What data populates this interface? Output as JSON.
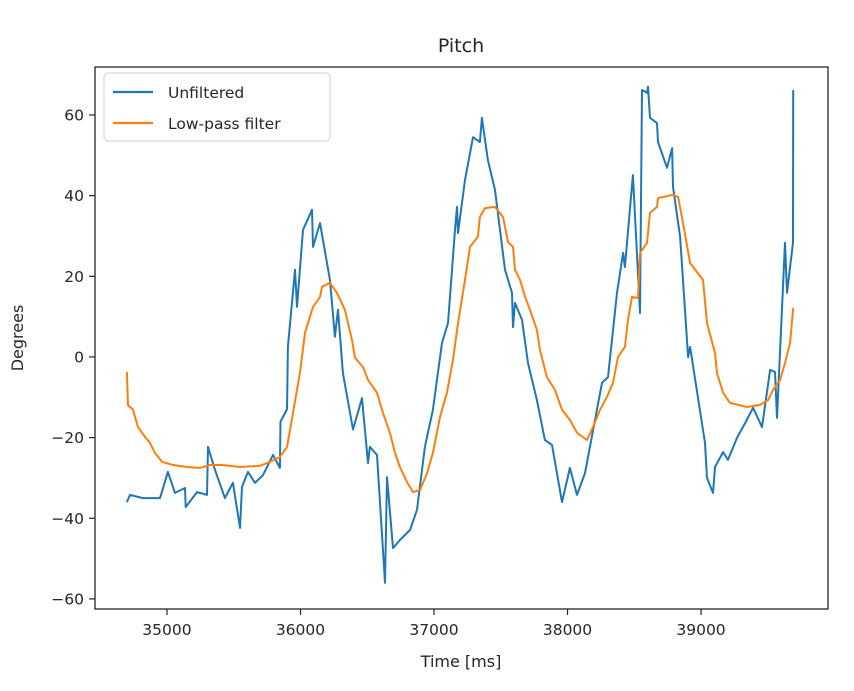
{
  "chart_data": {
    "type": "line",
    "title": "Pitch",
    "xlabel": "Time [ms]",
    "ylabel": "Degrees",
    "xlim": [
      34461,
      39951
    ],
    "ylim": [
      -62.5,
      71.9
    ],
    "xticks": [
      35000,
      36000,
      37000,
      38000,
      39000
    ],
    "yticks": [
      -60,
      -40,
      -20,
      0,
      20,
      40,
      60
    ],
    "grid": false,
    "legend_position": "top-left",
    "series": [
      {
        "name": "Unfiltered",
        "color": "#1f77b4",
        "x": [
          34700,
          34723,
          34820,
          34948,
          35007,
          35060,
          35135,
          35140,
          35225,
          35300,
          35307,
          35360,
          35434,
          35494,
          35547,
          35562,
          35607,
          35659,
          35719,
          35794,
          35846,
          35850,
          35899,
          35906,
          35959,
          35974,
          36019,
          36086,
          36094,
          36146,
          36221,
          36258,
          36281,
          36318,
          36393,
          36461,
          36506,
          36520,
          36573,
          36633,
          36648,
          36693,
          36745,
          36820,
          36873,
          36932,
          36992,
          37060,
          37105,
          37157,
          37172,
          37180,
          37232,
          37292,
          37344,
          37359,
          37404,
          37457,
          37532,
          37584,
          37592,
          37607,
          37659,
          37704,
          37771,
          37831,
          37884,
          37959,
          38018,
          38071,
          38131,
          38258,
          38303,
          38371,
          38416,
          38430,
          38490,
          38543,
          38558,
          38595,
          38603,
          38618,
          38670,
          38678,
          38745,
          38783,
          38790,
          38843,
          38903,
          38918,
          39030,
          39045,
          39090,
          39105,
          39165,
          39202,
          39270,
          39330,
          39390,
          39457,
          39517,
          39554,
          39569,
          39629,
          39644,
          39689,
          39690
        ],
        "y": [
          -36,
          -34.2,
          -35,
          -35,
          -28.5,
          -33.7,
          -32.5,
          -37.2,
          -33.5,
          -34.2,
          -22.3,
          -28,
          -35,
          -31.2,
          -42.4,
          -32.2,
          -28.5,
          -31.2,
          -29.3,
          -24.3,
          -27.5,
          -16,
          -13,
          2.5,
          21.6,
          12.4,
          31.5,
          36.5,
          27.3,
          33.2,
          19,
          5,
          11.7,
          -4,
          -18,
          -10.2,
          -26.3,
          -22.3,
          -24.3,
          -56,
          -29.8,
          -47.4,
          -45.4,
          -42.9,
          -37.9,
          -22.3,
          -13.1,
          3.5,
          8.4,
          31.5,
          37.2,
          30.7,
          43.9,
          54.5,
          53.3,
          59.3,
          48.8,
          41.4,
          21.6,
          15.9,
          7.4,
          13.4,
          9.2,
          -1.5,
          -10.7,
          -20.6,
          -21.8,
          -36,
          -27.5,
          -34.2,
          -28.8,
          -6.4,
          -5,
          15.9,
          25.8,
          22.3,
          45.1,
          10.9,
          66.2,
          65.5,
          67,
          59.3,
          58,
          53.3,
          46.9,
          51.8,
          42.2,
          29.8,
          0,
          2.5,
          -21.3,
          -30,
          -33.7,
          -27.3,
          -23.6,
          -25.5,
          -20,
          -16.4,
          -12.6,
          -17.4,
          -3.2,
          -3.7,
          -15.1,
          28.3,
          15.9,
          28.3,
          66.2
        ]
      },
      {
        "name": "Low-pass filter",
        "color": "#ff7f0e",
        "x": [
          34700,
          34708,
          34745,
          34783,
          34835,
          34873,
          34910,
          34963,
          35045,
          35150,
          35247,
          35322,
          35419,
          35547,
          35697,
          35772,
          35846,
          35899,
          35944,
          35996,
          36034,
          36094,
          36146,
          36161,
          36221,
          36273,
          36333,
          36386,
          36408,
          36468,
          36506,
          36573,
          36618,
          36670,
          36708,
          36745,
          36798,
          36843,
          36895,
          36948,
          36992,
          37045,
          37097,
          37142,
          37180,
          37232,
          37270,
          37329,
          37344,
          37382,
          37457,
          37517,
          37554,
          37592,
          37607,
          37644,
          37682,
          37719,
          37771,
          37794,
          37846,
          37906,
          37959,
          38018,
          38071,
          38146,
          38191,
          38243,
          38296,
          38341,
          38378,
          38430,
          38453,
          38483,
          38528,
          38543,
          38595,
          38618,
          38670,
          38678,
          38790,
          38828,
          38865,
          38918,
          39015,
          39045,
          39105,
          39120,
          39165,
          39217,
          39345,
          39442,
          39502,
          39539,
          39592,
          39629,
          39667,
          39690
        ],
        "y": [
          -3.7,
          -12,
          -13,
          -17.4,
          -19.8,
          -21.3,
          -23.8,
          -26,
          -26.8,
          -27.3,
          -27.5,
          -26.8,
          -26.8,
          -27.3,
          -27,
          -26,
          -24.8,
          -22.3,
          -13.9,
          -4,
          6,
          12.4,
          14.9,
          17.4,
          18.4,
          15.9,
          11.7,
          4.2,
          -0.2,
          -2.5,
          -5.7,
          -8.9,
          -13.9,
          -18.8,
          -23.8,
          -27.3,
          -31,
          -33.5,
          -33,
          -28.8,
          -23.8,
          -14.9,
          -8.9,
          -0.7,
          8.4,
          19.1,
          27.3,
          29.8,
          34.7,
          36.9,
          37.2,
          34.7,
          28.5,
          27.3,
          21.6,
          19.1,
          14.9,
          11.7,
          6.7,
          1.7,
          -5,
          -8.2,
          -13.1,
          -15.6,
          -18.8,
          -20.6,
          -17.4,
          -13.1,
          -9.9,
          -6.4,
          0,
          2.5,
          9.2,
          14.9,
          14.6,
          25.8,
          28.3,
          35.7,
          37.2,
          39.4,
          40.2,
          39.7,
          33.2,
          23.3,
          19.1,
          8.4,
          1,
          -4,
          -8.9,
          -11.4,
          -12.4,
          -11.9,
          -10.7,
          -8.2,
          -5.7,
          -1.5,
          3.5,
          12.2
        ]
      }
    ]
  }
}
